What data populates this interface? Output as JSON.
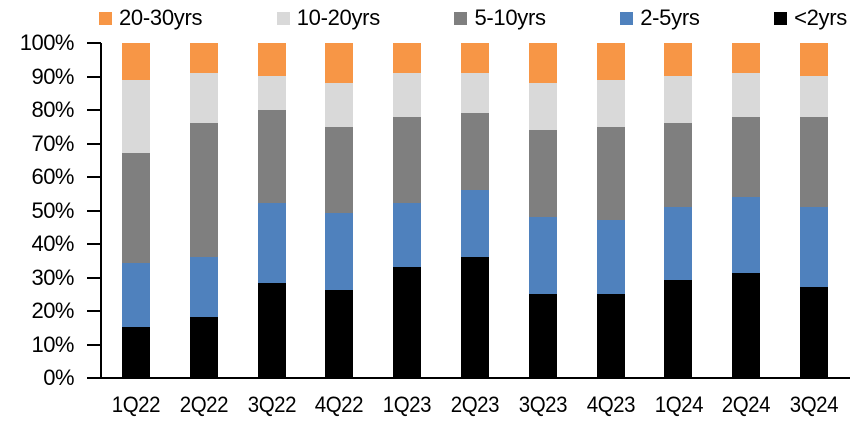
{
  "chart_data": {
    "type": "bar",
    "stacked": true,
    "stacked_unit": "percent",
    "title": "",
    "xlabel": "",
    "ylabel": "",
    "ylim": [
      0,
      100
    ],
    "grid": false,
    "legend_position": "top",
    "background_color": "#FFFFFF",
    "axis_color": "#000000",
    "categories": [
      "1Q22",
      "2Q22",
      "3Q22",
      "4Q22",
      "1Q23",
      "2Q23",
      "3Q23",
      "4Q23",
      "1Q24",
      "2Q24",
      "3Q24"
    ],
    "series": [
      {
        "name": "<2yrs",
        "color": "#000000",
        "values": [
          15,
          18,
          28,
          26,
          33,
          36,
          25,
          25,
          29,
          31,
          27
        ]
      },
      {
        "name": "2-5yrs",
        "color": "#4F81BD",
        "values": [
          19,
          18,
          24,
          23,
          19,
          20,
          23,
          22,
          22,
          23,
          24
        ]
      },
      {
        "name": "5-10yrs",
        "color": "#7F7F7F",
        "values": [
          33,
          40,
          28,
          26,
          26,
          23,
          26,
          28,
          25,
          24,
          27
        ]
      },
      {
        "name": "10-20yrs",
        "color": "#D9D9D9",
        "values": [
          22,
          15,
          10,
          13,
          13,
          12,
          14,
          14,
          14,
          13,
          12
        ]
      },
      {
        "name": "20-30yrs",
        "color": "#F79646",
        "values": [
          11,
          9,
          10,
          12,
          9,
          9,
          12,
          11,
          10,
          9,
          10
        ]
      }
    ],
    "legend_order": [
      "20-30yrs",
      "10-20yrs",
      "5-10yrs",
      "2-5yrs",
      "<2yrs"
    ],
    "y_ticks": [
      "0%",
      "10%",
      "20%",
      "30%",
      "40%",
      "50%",
      "60%",
      "70%",
      "80%",
      "90%",
      "100%"
    ]
  }
}
